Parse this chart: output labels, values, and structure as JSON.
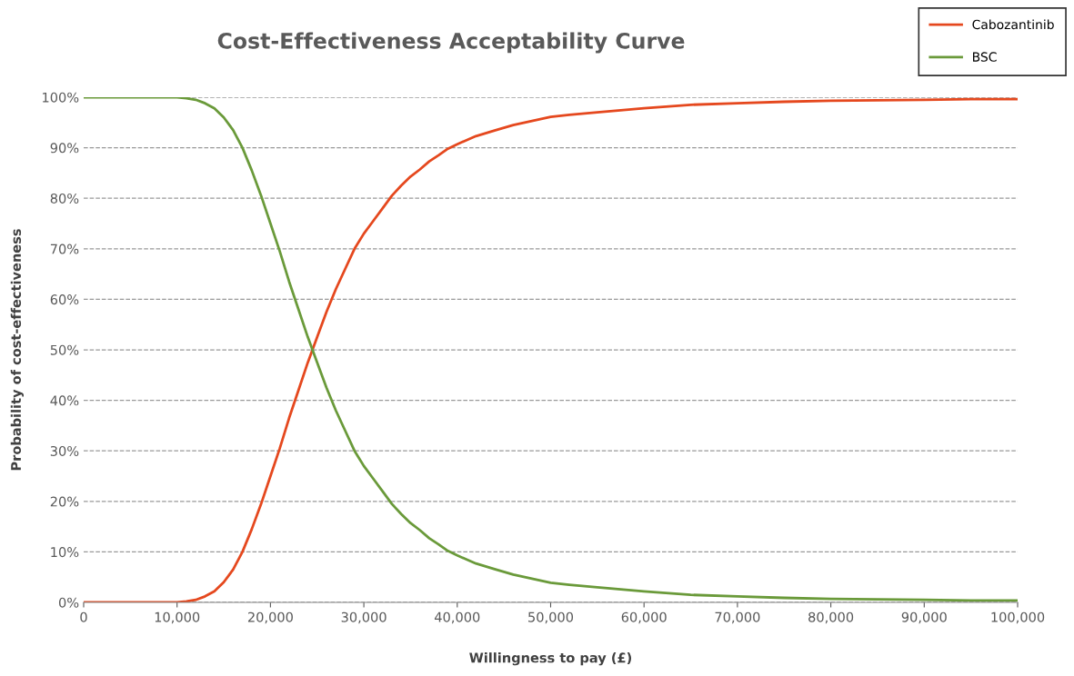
{
  "chart_data": {
    "type": "line",
    "title": "Cost-Effectiveness Acceptability Curve",
    "xlabel": "Willingness to pay (£)",
    "ylabel": "Probability of cost-effectiveness",
    "x": [
      0,
      5000,
      10000,
      11000,
      12000,
      13000,
      14000,
      15000,
      16000,
      17000,
      18000,
      19000,
      20000,
      21000,
      22000,
      23000,
      24000,
      25000,
      26000,
      27000,
      28000,
      29000,
      30000,
      31000,
      32000,
      33000,
      34000,
      35000,
      36000,
      37000,
      38000,
      39000,
      40000,
      42000,
      44000,
      46000,
      48000,
      50000,
      52000,
      55000,
      60000,
      65000,
      70000,
      75000,
      80000,
      85000,
      90000,
      95000,
      100000
    ],
    "series": [
      {
        "name": "Cabozantinib",
        "color": "#e5481e",
        "values": [
          0,
          0,
          0,
          0.2,
          0.5,
          1.2,
          2.2,
          4,
          6.5,
          10,
          14.5,
          19.5,
          25,
          30.5,
          36.5,
          42,
          47.5,
          52.5,
          57.5,
          62,
          66,
          70,
          73,
          75.5,
          78,
          80.5,
          82.5,
          84.3,
          85.7,
          87.3,
          88.5,
          89.8,
          90.7,
          92.3,
          93.4,
          94.5,
          95.3,
          96.1,
          96.5,
          97,
          97.8,
          98.5,
          98.8,
          99.1,
          99.3,
          99.4,
          99.5,
          99.6,
          99.6
        ]
      },
      {
        "name": "BSC",
        "color": "#6a9a3a",
        "values": [
          100,
          100,
          100,
          99.8,
          99.5,
          98.8,
          97.8,
          96,
          93.5,
          90,
          85.5,
          80.5,
          75,
          69.5,
          63.5,
          58,
          52.5,
          47.5,
          42.5,
          38,
          34,
          30,
          27,
          24.5,
          22,
          19.5,
          17.5,
          15.7,
          14.3,
          12.7,
          11.5,
          10.2,
          9.3,
          7.7,
          6.6,
          5.5,
          4.7,
          3.9,
          3.5,
          3,
          2.2,
          1.5,
          1.2,
          0.9,
          0.7,
          0.6,
          0.5,
          0.4,
          0.4
        ]
      }
    ],
    "xlim": [
      0,
      100000
    ],
    "xticks": [
      {
        "value": 0,
        "label": "0"
      },
      {
        "value": 10000,
        "label": "10,000"
      },
      {
        "value": 20000,
        "label": "20,000"
      },
      {
        "value": 30000,
        "label": "30,000"
      },
      {
        "value": 40000,
        "label": "40,000"
      },
      {
        "value": 50000,
        "label": "50,000"
      },
      {
        "value": 60000,
        "label": "60,000"
      },
      {
        "value": 70000,
        "label": "70,000"
      },
      {
        "value": 80000,
        "label": "80,000"
      },
      {
        "value": 90000,
        "label": "90,000"
      },
      {
        "value": 100000,
        "label": "100,000"
      }
    ],
    "ylim": [
      0,
      100
    ],
    "yticks": [
      {
        "value": 0,
        "label": "0%"
      },
      {
        "value": 10,
        "label": "10%"
      },
      {
        "value": 20,
        "label": "20%"
      },
      {
        "value": 30,
        "label": "30%"
      },
      {
        "value": 40,
        "label": "40%"
      },
      {
        "value": 50,
        "label": "50%"
      },
      {
        "value": 60,
        "label": "60%"
      },
      {
        "value": 70,
        "label": "70%"
      },
      {
        "value": 80,
        "label": "80%"
      },
      {
        "value": 90,
        "label": "90%"
      },
      {
        "value": 100,
        "label": "100%"
      }
    ],
    "grid": "y",
    "legend": "top right",
    "marker": "none",
    "line_style": "solid"
  }
}
